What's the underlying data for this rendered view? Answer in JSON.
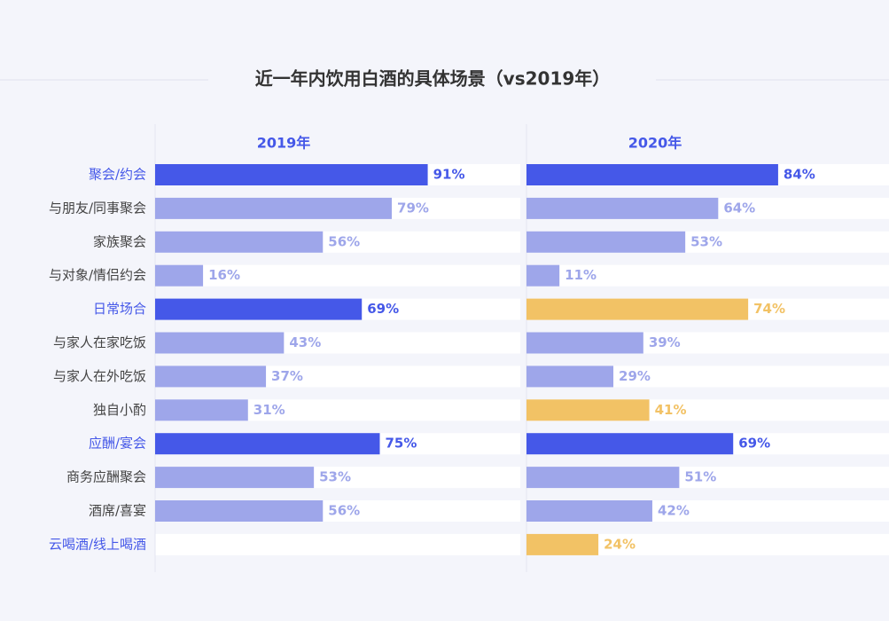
{
  "chart_data": {
    "type": "bar",
    "orientation": "horizontal",
    "title": "近一年内饮用白酒的具体场景（vs2019年）",
    "categories": [
      "聚会/约会",
      "与朋友/同事聚会",
      "家族聚会",
      "与对象/情侣约会",
      "日常场合",
      "与家人在家吃饭",
      "与家人在外吃饭",
      "独自小酌",
      "应酬/宴会",
      "商务应酬聚会",
      "酒席/喜宴",
      "云喝酒/线上喝酒"
    ],
    "category_colors": [
      "#4558e8",
      "#444444",
      "#444444",
      "#444444",
      "#4558e8",
      "#444444",
      "#444444",
      "#444444",
      "#4558e8",
      "#444444",
      "#444444",
      "#4558e8"
    ],
    "xlim": [
      0,
      100
    ],
    "series": [
      {
        "name": "2019年",
        "values": [
          91,
          79,
          56,
          16,
          69,
          43,
          37,
          31,
          75,
          53,
          56,
          null
        ],
        "value_labels": [
          "91%",
          "79%",
          "56%",
          "16%",
          "69%",
          "43%",
          "37%",
          "31%",
          "75%",
          "53%",
          "56%",
          null
        ],
        "colors": [
          "#4558e8",
          "#9ea6ea",
          "#9ea6ea",
          "#9ea6ea",
          "#4558e8",
          "#9ea6ea",
          "#9ea6ea",
          "#9ea6ea",
          "#4558e8",
          "#9ea6ea",
          "#9ea6ea",
          "#9ea6ea"
        ]
      },
      {
        "name": "2020年",
        "values": [
          84,
          64,
          53,
          11,
          74,
          39,
          29,
          41,
          69,
          51,
          42,
          24
        ],
        "value_labels": [
          "84%",
          "64%",
          "53%",
          "11%",
          "74%",
          "39%",
          "29%",
          "41%",
          "69%",
          "51%",
          "42%",
          "24%"
        ],
        "colors": [
          "#4558e8",
          "#9ea6ea",
          "#9ea6ea",
          "#9ea6ea",
          "#f2c265",
          "#9ea6ea",
          "#9ea6ea",
          "#f2c265",
          "#4558e8",
          "#9ea6ea",
          "#9ea6ea",
          "#f2c265"
        ]
      }
    ]
  }
}
